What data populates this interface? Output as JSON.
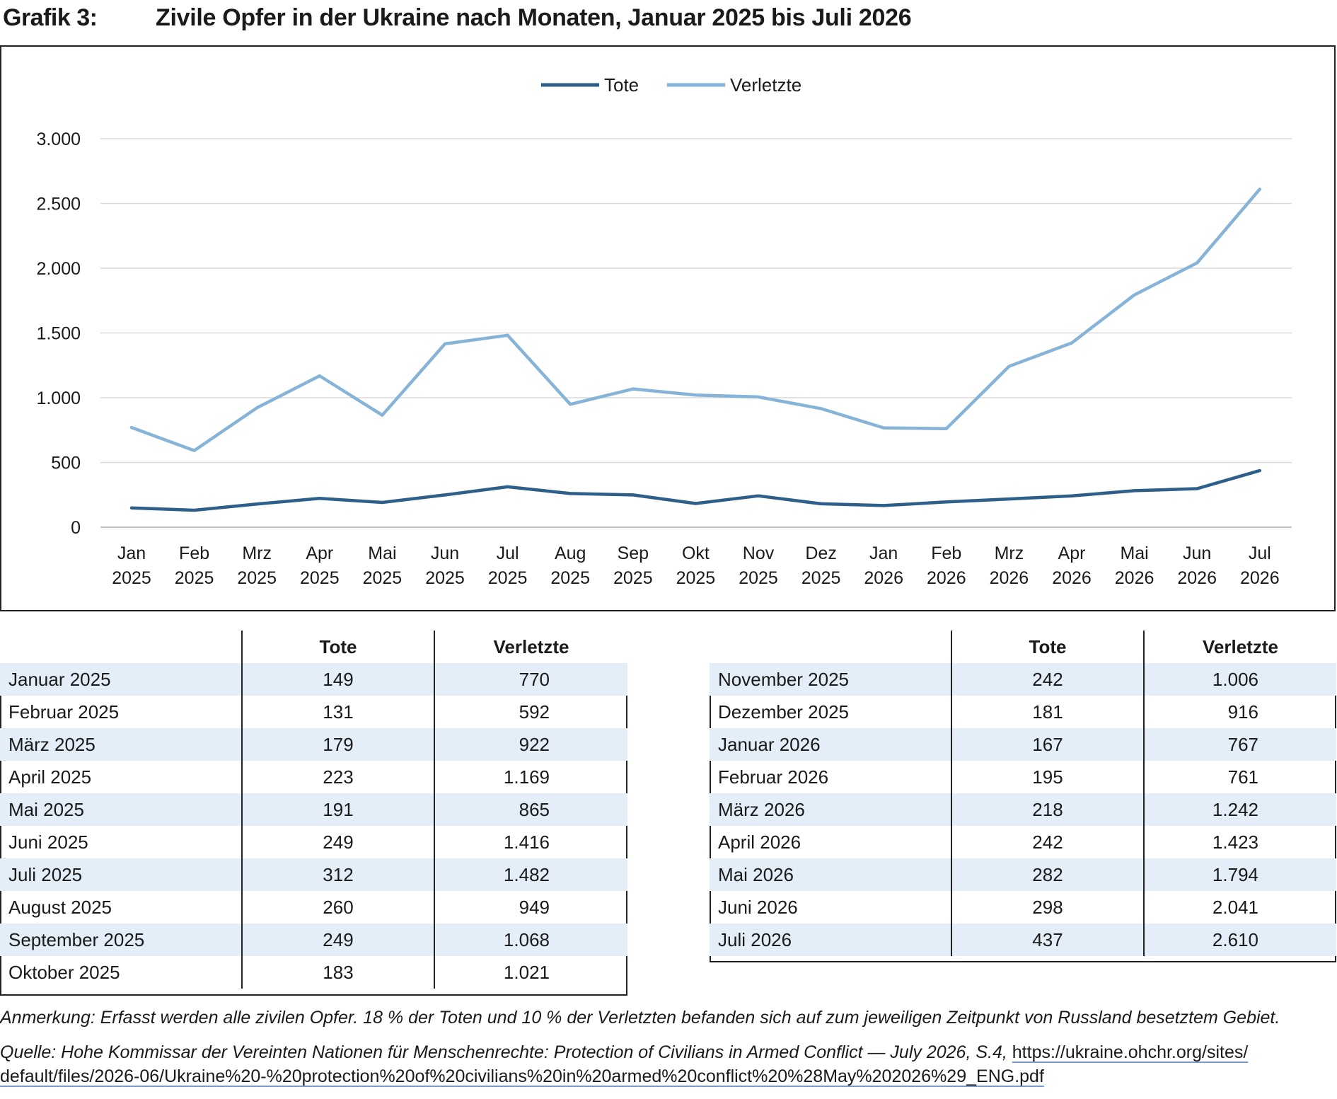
{
  "figure": {
    "label": "Grafik 3:",
    "title": "Zivile Opfer in der Ukraine nach Monaten, Januar 2025 bis Juli 2026"
  },
  "colors": {
    "tote": "#2e5f8a",
    "verletzte": "#86b4d9",
    "grid": "#d9d9d9",
    "table_shade": "#e3eef8"
  },
  "chart_data": {
    "type": "line",
    "title": "",
    "xlabel": "",
    "ylabel": "",
    "ylim": [
      0,
      3000
    ],
    "yticks": [
      0,
      500,
      1000,
      1500,
      2000,
      2500,
      3000
    ],
    "ytick_labels": [
      "0",
      "500",
      "1.000",
      "1.500",
      "2.000",
      "2.500",
      "3.000"
    ],
    "grid": true,
    "legend_position": "top-center",
    "categories": [
      [
        "Jan",
        "2025"
      ],
      [
        "Feb",
        "2025"
      ],
      [
        "Mrz",
        "2025"
      ],
      [
        "Apr",
        "2025"
      ],
      [
        "Mai",
        "2025"
      ],
      [
        "Jun",
        "2025"
      ],
      [
        "Jul",
        "2025"
      ],
      [
        "Aug",
        "2025"
      ],
      [
        "Sep",
        "2025"
      ],
      [
        "Okt",
        "2025"
      ],
      [
        "Nov",
        "2025"
      ],
      [
        "Dez",
        "2025"
      ],
      [
        "Jan",
        "2026"
      ],
      [
        "Feb",
        "2026"
      ],
      [
        "Mrz",
        "2026"
      ],
      [
        "Apr",
        "2026"
      ],
      [
        "Mai",
        "2026"
      ],
      [
        "Jun",
        "2026"
      ],
      [
        "Jul",
        "2026"
      ]
    ],
    "series": [
      {
        "name": "Tote",
        "color": "#2e5f8a",
        "values": [
          149,
          131,
          179,
          223,
          191,
          249,
          312,
          260,
          249,
          183,
          242,
          181,
          167,
          195,
          218,
          242,
          282,
          298,
          437
        ]
      },
      {
        "name": "Verletzte",
        "color": "#86b4d9",
        "values": [
          770,
          592,
          922,
          1169,
          865,
          1416,
          1482,
          949,
          1068,
          1021,
          1006,
          916,
          767,
          761,
          1242,
          1423,
          1794,
          2041,
          2610
        ]
      }
    ]
  },
  "table_left": {
    "headers": [
      "",
      "Tote",
      "Verletzte"
    ],
    "rows": [
      [
        "Januar 2025",
        "149",
        "770"
      ],
      [
        "Februar 2025",
        "131",
        "592"
      ],
      [
        "März 2025",
        "179",
        "922"
      ],
      [
        "April 2025",
        "223",
        "1.169"
      ],
      [
        "Mai 2025",
        "191",
        "865"
      ],
      [
        "Juni 2025",
        "249",
        "1.416"
      ],
      [
        "Juli 2025",
        "312",
        "1.482"
      ],
      [
        "August 2025",
        "260",
        "949"
      ],
      [
        "September 2025",
        "249",
        "1.068"
      ],
      [
        "Oktober 2025",
        "183",
        "1.021"
      ]
    ]
  },
  "table_right": {
    "headers": [
      "",
      "Tote",
      "Verletzte"
    ],
    "rows": [
      [
        "November 2025",
        "242",
        "1.006"
      ],
      [
        "Dezember 2025",
        "181",
        "916"
      ],
      [
        "Januar 2026",
        "167",
        "767"
      ],
      [
        "Februar 2026",
        "195",
        "761"
      ],
      [
        "März 2026",
        "218",
        "1.242"
      ],
      [
        "April 2026",
        "242",
        "1.423"
      ],
      [
        "Mai 2026",
        "282",
        "1.794"
      ],
      [
        "Juni 2026",
        "298",
        "2.041"
      ],
      [
        "Juli 2026",
        "437",
        "2.610"
      ]
    ]
  },
  "note": "Anmerkung: Erfasst werden alle zivilen Opfer. 18 % der Toten und 10 % der Verletzten befanden sich auf zum jeweiligen Zeitpunkt von Russland besetztem Gebiet.",
  "source": {
    "text": "Quelle: Hohe Kommissar der Vereinten Nationen für Menschenrechte: Protection of Civilians in Armed Conflict — July 2026, S.4,",
    "url_line1": "https://ukraine.ohchr.org/sites/",
    "url_line2": "default/files/2026-06/Ukraine%20-%20protection%20of%20civilians%20in%20armed%20conflict%20%28May%202026%29_ENG.pdf"
  }
}
